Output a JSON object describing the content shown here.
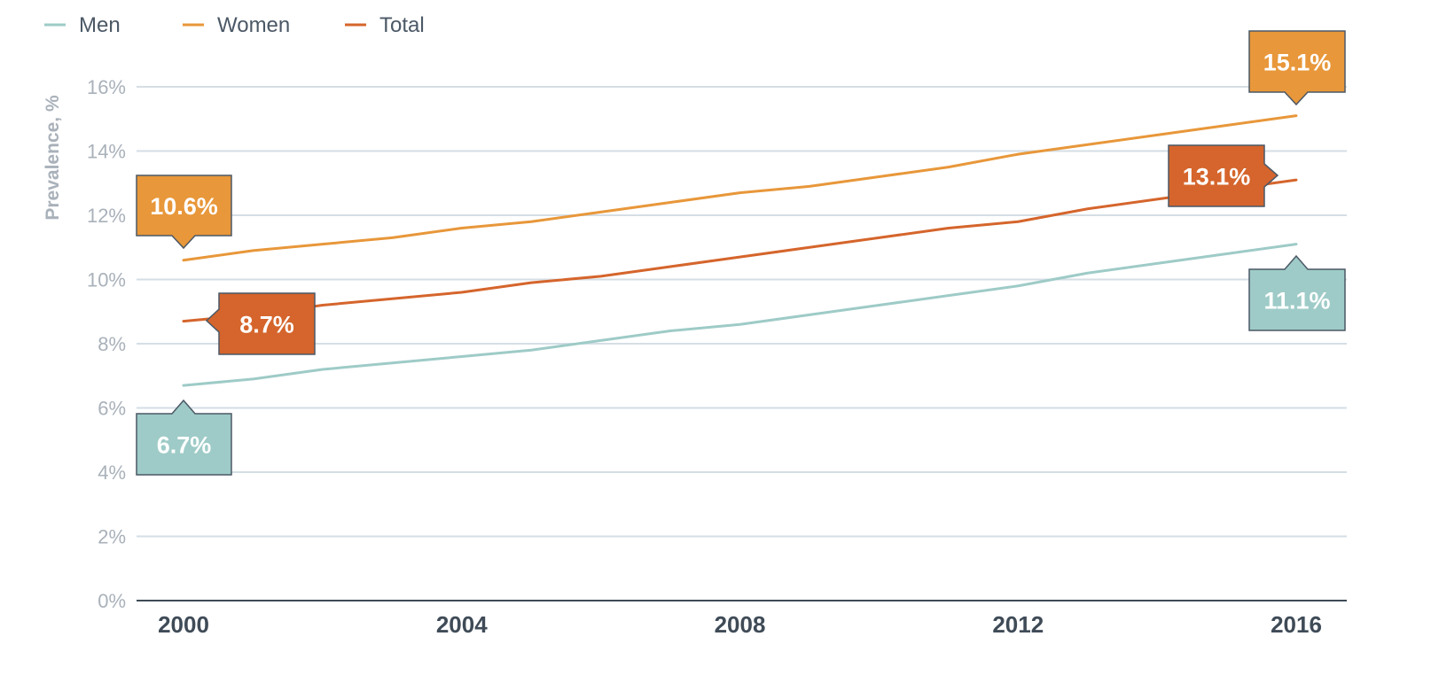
{
  "chart_data": {
    "type": "line",
    "ylabel": "Prevalence, %",
    "xlabel": "",
    "x": [
      2000,
      2001,
      2002,
      2003,
      2004,
      2005,
      2006,
      2007,
      2008,
      2009,
      2010,
      2011,
      2012,
      2013,
      2014,
      2015,
      2016
    ],
    "xticks": [
      "2000",
      "2004",
      "2008",
      "2012",
      "2016"
    ],
    "yticks": [
      "0%",
      "2%",
      "4%",
      "6%",
      "8%",
      "10%",
      "12%",
      "14%",
      "16%"
    ],
    "ylim": [
      0,
      16
    ],
    "xlim": [
      2000,
      2016
    ],
    "grid": true,
    "legend_position": "top-left",
    "series": [
      {
        "name": "Men",
        "color": "#9ecbc7",
        "values": [
          6.7,
          6.9,
          7.2,
          7.4,
          7.6,
          7.8,
          8.1,
          8.4,
          8.6,
          8.9,
          9.2,
          9.5,
          9.8,
          10.2,
          10.5,
          10.8,
          11.1
        ]
      },
      {
        "name": "Women",
        "color": "#e8973a",
        "values": [
          10.6,
          10.9,
          11.1,
          11.3,
          11.6,
          11.8,
          12.1,
          12.4,
          12.7,
          12.9,
          13.2,
          13.5,
          13.9,
          14.2,
          14.5,
          14.8,
          15.1
        ]
      },
      {
        "name": "Total",
        "color": "#d5652c",
        "values": [
          8.7,
          8.9,
          9.2,
          9.4,
          9.6,
          9.9,
          10.1,
          10.4,
          10.7,
          11.0,
          11.3,
          11.6,
          11.8,
          12.2,
          12.5,
          12.8,
          13.1
        ]
      }
    ],
    "annotations": [
      {
        "series": "Women",
        "label": "10.6%",
        "year": 2000,
        "value": 10.6,
        "color": "#e8973a"
      },
      {
        "series": "Total",
        "label": "8.7%",
        "year": 2000,
        "value": 8.7,
        "color": "#d5652c"
      },
      {
        "series": "Men",
        "label": "6.7%",
        "year": 2000,
        "value": 6.7,
        "color": "#9ecbc7"
      },
      {
        "series": "Women",
        "label": "15.1%",
        "year": 2016,
        "value": 15.1,
        "color": "#e8973a"
      },
      {
        "series": "Total",
        "label": "13.1%",
        "year": 2016,
        "value": 13.1,
        "color": "#d5652c"
      },
      {
        "series": "Men",
        "label": "11.1%",
        "year": 2016,
        "value": 11.1,
        "color": "#9ecbc7"
      }
    ],
    "colors": {
      "grid": "#d5dee4",
      "axis": "#3f4b57",
      "tick_text": "#a9b1ba",
      "callout_border": "#4b5866"
    }
  }
}
